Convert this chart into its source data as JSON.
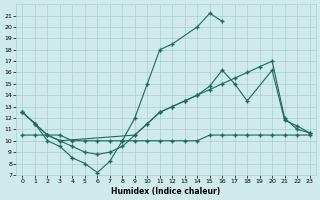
{
  "title": "",
  "xlabel": "Humidex (Indice chaleur)",
  "background_color": "#ceeaea",
  "grid_color": "#aacece",
  "line_color": "#1a6b5a",
  "x_values": [
    0,
    1,
    2,
    3,
    4,
    5,
    6,
    7,
    8,
    9,
    10,
    11,
    12,
    13,
    14,
    15,
    16,
    17,
    18,
    19,
    20,
    21,
    22,
    23
  ],
  "line1_y": [
    12.5,
    11.5,
    10.0,
    9.5,
    8.5,
    8.0,
    7.2,
    8.2,
    10.0,
    12.0,
    15.0,
    18.0,
    18.5,
    null,
    20.0,
    21.2,
    20.5,
    null,
    null,
    null,
    null,
    null,
    null,
    null
  ],
  "line1_x": [
    0,
    1,
    2,
    3,
    4,
    5,
    6,
    7,
    8,
    9,
    10,
    11,
    12,
    14,
    15,
    16
  ],
  "line1_yv": [
    12.5,
    11.5,
    10.0,
    9.5,
    8.5,
    8.0,
    7.2,
    8.2,
    10.0,
    12.0,
    15.0,
    18.0,
    18.5,
    20.0,
    21.2,
    20.5
  ],
  "line2_x": [
    0,
    1,
    2,
    3,
    4,
    5,
    6,
    7,
    8,
    9,
    10,
    11,
    12,
    13,
    14,
    15,
    16,
    17,
    18,
    20,
    21,
    22,
    23
  ],
  "line2_y": [
    12.5,
    11.5,
    10.5,
    10.0,
    9.5,
    9.0,
    8.8,
    9.0,
    9.5,
    10.5,
    11.5,
    12.5,
    13.0,
    13.5,
    14.0,
    14.8,
    16.2,
    15.0,
    13.5,
    16.2,
    11.8,
    11.3,
    10.7
  ],
  "line3_x": [
    0,
    1,
    2,
    3,
    9,
    10,
    11,
    12,
    13,
    14,
    15,
    16,
    17,
    18,
    19,
    20,
    21,
    22,
    23
  ],
  "line3_y": [
    12.5,
    11.5,
    10.5,
    10.0,
    10.5,
    11.5,
    12.5,
    13.0,
    13.5,
    14.0,
    14.5,
    15.0,
    15.5,
    16.0,
    16.5,
    17.0,
    12.0,
    11.0,
    10.7
  ],
  "line4_x": [
    0,
    1,
    2,
    3,
    4,
    5,
    6,
    7,
    8,
    9,
    10,
    11,
    12,
    13,
    14,
    15,
    16,
    17,
    18,
    19,
    20,
    21,
    22,
    23
  ],
  "line4_y": [
    10.5,
    10.5,
    10.5,
    10.5,
    10.0,
    10.0,
    10.0,
    10.0,
    10.0,
    10.0,
    10.0,
    10.0,
    10.0,
    10.0,
    10.0,
    10.5,
    10.5,
    10.5,
    10.5,
    10.5,
    10.5,
    10.5,
    10.5,
    10.5
  ],
  "ylim": [
    7,
    22
  ],
  "xlim": [
    -0.5,
    23.5
  ],
  "yticks": [
    7,
    8,
    9,
    10,
    11,
    12,
    13,
    14,
    15,
    16,
    17,
    18,
    19,
    20,
    21
  ],
  "xticks": [
    0,
    1,
    2,
    3,
    4,
    5,
    6,
    7,
    8,
    9,
    10,
    11,
    12,
    13,
    14,
    15,
    16,
    17,
    18,
    19,
    20,
    21,
    22,
    23
  ]
}
